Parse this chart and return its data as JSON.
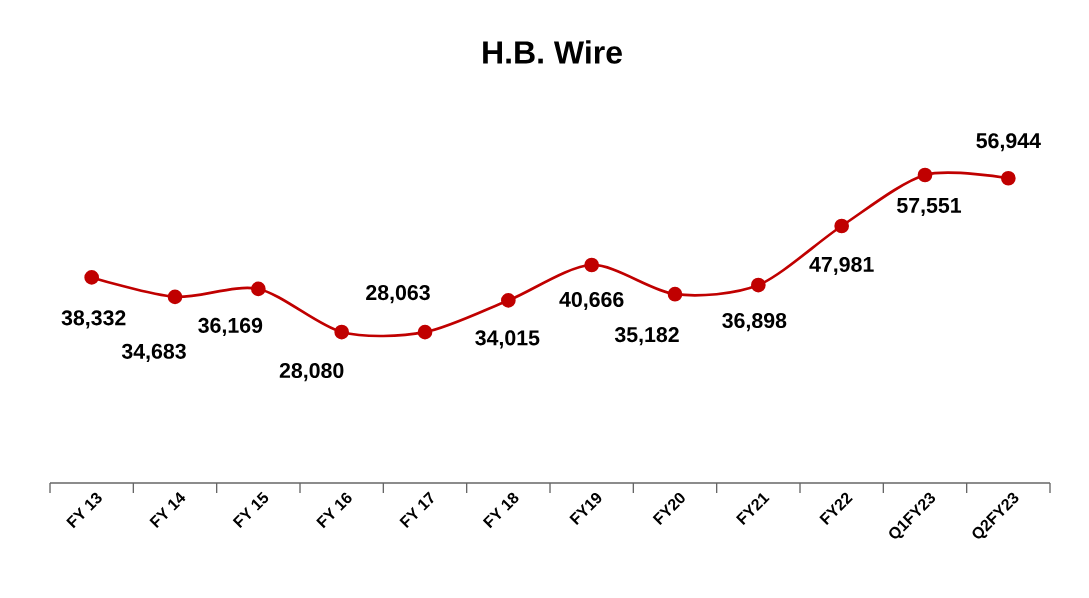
{
  "chart_data": {
    "type": "line",
    "title": "H.B. Wire",
    "categories": [
      "FY 13",
      "FY 14",
      "FY 15",
      "FY 16",
      "FY 17",
      "FY 18",
      "FY19",
      "FY20",
      "FY21",
      "FY22",
      "Q1FY23",
      "Q2FY23"
    ],
    "values": [
      38332,
      34683,
      36169,
      28080,
      28063,
      34015,
      40666,
      35182,
      36898,
      47981,
      57551,
      56944
    ],
    "value_labels": [
      "38,332",
      "34,683",
      "36,169",
      "28,080",
      "28,063",
      "34,015",
      "40,666",
      "35,182",
      "36,898",
      "47,981",
      "57,551",
      "56,944"
    ],
    "color": "#c00000",
    "marker": "circle",
    "line_style": "solid"
  }
}
